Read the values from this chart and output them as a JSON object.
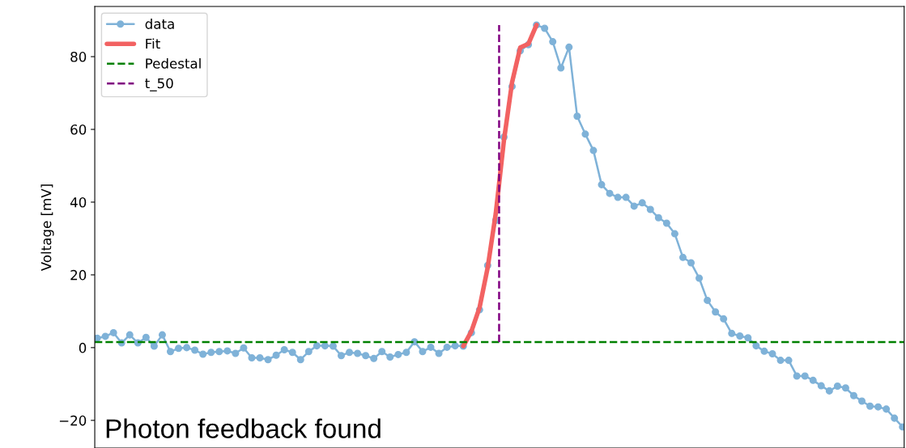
{
  "chart_data": {
    "type": "line",
    "ylabel": "Voltage [mV]",
    "categories": [
      null,
      null,
      null,
      null,
      null,
      null,
      null,
      null,
      null,
      null,
      null,
      null,
      null,
      null,
      null,
      null,
      null,
      null,
      null,
      null,
      null,
      null,
      null,
      null,
      null,
      null,
      null,
      null,
      null,
      null,
      null,
      null,
      null,
      null,
      null,
      null,
      null,
      null,
      null,
      null,
      null,
      null,
      null,
      null,
      null,
      null,
      null,
      null,
      null,
      null,
      null,
      null,
      null,
      null,
      null,
      null,
      null,
      null,
      null,
      null,
      null,
      null,
      null,
      null,
      null,
      null,
      null,
      null,
      null,
      null,
      null,
      null,
      null,
      null,
      null,
      null,
      null,
      null,
      null,
      null,
      null,
      null,
      null,
      null,
      null,
      null,
      null,
      null,
      null,
      null,
      null,
      null,
      null,
      null,
      null,
      null,
      null,
      null,
      null,
      null
    ],
    "series": [
      {
        "name": "data",
        "marker": "circle",
        "color": "#7fb2d8",
        "values": [
          2.6,
          3.1,
          4.1,
          1.3,
          3.5,
          1.3,
          2.8,
          0.4,
          3.5,
          -1.1,
          -0.2,
          0,
          -0.7,
          -1.8,
          -1.3,
          -1.1,
          -0.9,
          -1.6,
          -0.1,
          -2.8,
          -2.8,
          -3.3,
          -2.1,
          -0.6,
          -1.3,
          -3.3,
          -1.1,
          0.5,
          0.5,
          0.4,
          -2.2,
          -1.3,
          -1.6,
          -2.2,
          -3.0,
          -1.1,
          -2.6,
          -1.9,
          -1.3,
          1.6,
          -1.1,
          0.1,
          -1.6,
          0.1,
          0.5,
          0.4,
          4.1,
          10.4,
          22.6,
          35.0,
          57.9,
          71.8,
          81.6,
          83.3,
          88.7,
          87.8,
          84.1,
          76.9,
          82.6,
          63.6,
          58.7,
          54.2,
          44.8,
          42.4,
          41.3,
          41.3,
          38.9,
          39.8,
          38.0,
          35.7,
          34.2,
          31.3,
          24.8,
          23.3,
          19.1,
          13.0,
          9.8,
          7.9,
          3.9,
          3.2,
          2.7,
          0.5,
          -1.0,
          -1.7,
          -3.5,
          -3.5,
          -7.8,
          -7.8,
          -9.0,
          -10.5,
          -11.9,
          -10.6,
          -11.1,
          -13.2,
          -14.7,
          -16.1,
          -16.3,
          -16.9,
          -19.4,
          -21.8
        ]
      },
      {
        "name": "Fit",
        "marker": "none",
        "color": "#f26262",
        "values": [
          null,
          null,
          null,
          null,
          null,
          null,
          null,
          null,
          null,
          null,
          null,
          null,
          null,
          null,
          null,
          null,
          null,
          null,
          null,
          null,
          null,
          null,
          null,
          null,
          null,
          null,
          null,
          null,
          null,
          null,
          null,
          null,
          null,
          null,
          null,
          null,
          null,
          null,
          null,
          null,
          null,
          null,
          null,
          null,
          null,
          0.4,
          4.5,
          11,
          22,
          37,
          57,
          73,
          82.5,
          83.5,
          88.7,
          null,
          null,
          null,
          null,
          null,
          null,
          null,
          null,
          null,
          null,
          null,
          null,
          null,
          null,
          null,
          null,
          null,
          null,
          null,
          null,
          null,
          null,
          null,
          null,
          null,
          null,
          null,
          null,
          null,
          null,
          null,
          null,
          null,
          null,
          null,
          null,
          null,
          null,
          null,
          null,
          null,
          null,
          null,
          null,
          null
        ]
      }
    ],
    "ref_lines": [
      {
        "axis": "y",
        "value": 1.5,
        "label": "Pedestal",
        "color": "#008000",
        "line_style": "dashed"
      },
      {
        "axis": "x",
        "label": "t_50",
        "color": "#800080",
        "line_style": "dashed"
      }
    ],
    "annotations": [
      "Photon feedback found"
    ],
    "ylim": [
      -27.6,
      93.8
    ],
    "yticks": [
      -20,
      0,
      20,
      40,
      60,
      80
    ],
    "tick_labels": "y",
    "line_style": "solid",
    "grid": false,
    "legend": "top left"
  }
}
